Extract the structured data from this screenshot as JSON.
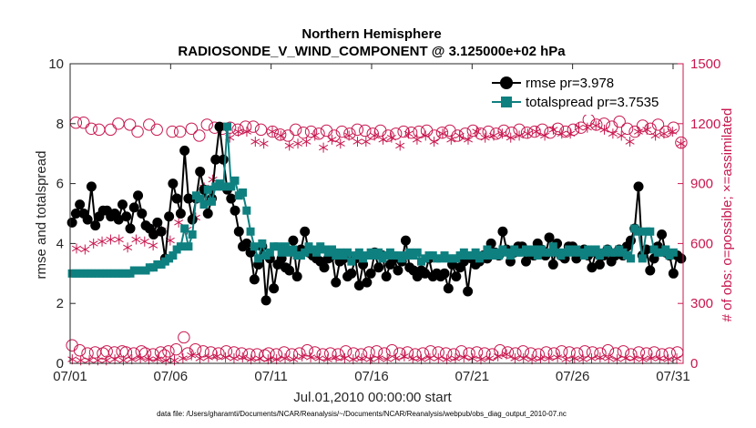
{
  "chart_data": {
    "type": "line",
    "title_line1": "Northern Hemisphere",
    "title_line2": "RADIOSONDE_V_WIND_COMPONENT @ 3.125000e+02 hPa",
    "xlabel": "Jul.01,2010 00:00:00 start",
    "ylabel_left": "rmse and totalspread",
    "ylabel_right": "# of obs: o=possible; ×=assimilated",
    "footer": "data file: /Users/gharamti/Documents/NCAR/Reanalysis/~/Documents/NCAR/Reanalysis/webpub/obs_diag_output_2010-07.nc",
    "xlim": [
      0,
      30.5
    ],
    "ylim_left": [
      0,
      10
    ],
    "ylim_right": [
      0,
      1500
    ],
    "x_tick_values": [
      0,
      5,
      10,
      15,
      20,
      25,
      30
    ],
    "x_tick_labels": [
      "07/01",
      "07/06",
      "07/11",
      "07/16",
      "07/21",
      "07/26",
      "07/31"
    ],
    "y_left_ticks": [
      "0",
      "2",
      "4",
      "6",
      "8",
      "10"
    ],
    "y_right_ticks": [
      "0",
      "300",
      "600",
      "900",
      "1200",
      "1500"
    ],
    "colors": {
      "rmse": "#000000",
      "totalspread": "#0f8080",
      "obs": "#c8174f",
      "axis": "#262626"
    },
    "series": [
      {
        "name": "rmse pr=3.978",
        "axis": "left",
        "marker": "circle",
        "values": [
          4.7,
          5.0,
          5.3,
          5.0,
          4.8,
          5.9,
          4.6,
          4.9,
          5.1,
          5.1,
          4.9,
          5.0,
          4.8,
          5.3,
          4.9,
          4.5,
          5.2,
          5.6,
          5.0,
          4.6,
          4.5,
          4.3,
          4.7,
          4.4,
          3.5,
          4.9,
          6.0,
          5.5,
          5.0,
          7.1,
          5.5,
          4.8,
          5.5,
          6.4,
          5.8,
          5.0,
          5.5,
          6.8,
          7.9,
          6.8,
          5.8,
          5.5,
          5.1,
          4.4,
          3.9,
          4.0,
          3.7,
          2.8,
          3.3,
          3.9,
          2.1,
          3.5,
          2.5,
          3.3,
          3.5,
          3.2,
          3.1,
          4.1,
          2.9,
          3.8,
          4.4,
          3.7,
          3.6,
          3.5,
          3.4,
          3.2,
          3.5,
          3.6,
          2.7,
          3.4,
          3.5,
          2.9,
          3.0,
          3.5,
          2.6,
          3.3,
          2.7,
          3.0,
          3.7,
          3.2,
          3.6,
          2.9,
          3.3,
          3.5,
          3.1,
          3.4,
          4.1,
          3.2,
          3.1,
          2.9,
          3.1,
          3.0,
          3.5,
          2.9,
          3.0,
          2.9,
          3.0,
          2.5,
          3.3,
          2.9,
          3.2,
          3.4,
          2.4,
          3.5,
          3.3,
          3.4,
          3.6,
          3.5,
          4.0,
          3.7,
          3.6,
          4.4,
          3.8,
          3.4,
          3.7,
          3.9,
          3.9,
          3.4,
          3.7,
          3.6,
          4.0,
          3.8,
          3.6,
          4.2,
          3.3,
          4.0,
          3.6,
          3.5,
          3.9,
          3.9,
          3.5,
          3.7,
          3.8,
          3.6,
          3.2,
          3.7,
          3.3,
          3.6,
          3.8,
          3.4,
          3.6,
          3.8,
          3.6,
          3.9,
          4.1,
          4.5,
          5.9,
          3.6,
          3.8,
          3.1,
          3.5,
          3.9,
          4.3,
          3.7,
          3.6,
          3.0,
          3.6,
          3.5
        ]
      },
      {
        "name": "totalspread pr=3.7535",
        "axis": "left",
        "marker": "square",
        "values": [
          3.0,
          3.0,
          3.0,
          3.0,
          3.0,
          3.0,
          3.0,
          3.0,
          3.0,
          3.0,
          3.0,
          3.0,
          3.0,
          3.0,
          3.0,
          3.0,
          3.1,
          3.1,
          3.1,
          3.1,
          3.2,
          3.2,
          3.3,
          3.3,
          3.4,
          3.5,
          3.6,
          3.8,
          3.9,
          4.5,
          3.9,
          4.3,
          5.6,
          5.5,
          5.3,
          5.8,
          5.4,
          5.9,
          6.0,
          5.9,
          7.9,
          5.9,
          6.1,
          5.6,
          5.7,
          5.1,
          4.4,
          3.9,
          3.5,
          4.0,
          3.6,
          3.7,
          3.9,
          3.9,
          3.7,
          3.9,
          3.7,
          3.8,
          3.6,
          3.6,
          3.7,
          3.9,
          3.8,
          3.7,
          3.9,
          3.8,
          3.7,
          3.8,
          3.6,
          3.7,
          3.6,
          3.7,
          3.4,
          3.6,
          3.7,
          3.5,
          3.6,
          3.7,
          3.6,
          3.7,
          3.5,
          3.6,
          3.7,
          3.6,
          3.6,
          3.5,
          3.6,
          3.7,
          3.6,
          3.7,
          3.4,
          3.5,
          3.6,
          3.6,
          3.5,
          3.5,
          3.6,
          3.5,
          3.5,
          3.5,
          3.6,
          3.7,
          3.6,
          3.6,
          3.7,
          3.5,
          3.6,
          3.8,
          3.6,
          3.7,
          3.6,
          3.8,
          3.7,
          3.6,
          3.8,
          3.7,
          3.7,
          3.8,
          3.7,
          3.8,
          3.6,
          3.8,
          3.7,
          3.7,
          3.9,
          3.7,
          3.6,
          3.7,
          3.8,
          3.7,
          3.8,
          3.7,
          3.6,
          3.8,
          3.7,
          3.8,
          3.6,
          3.7,
          3.8,
          3.7,
          3.7,
          3.8,
          3.7,
          3.6,
          3.5,
          4.5,
          4.4,
          3.5,
          4.4,
          4.4,
          3.8,
          3.7,
          3.7,
          3.8,
          3.6,
          3.7
        ]
      },
      {
        "name": "possible",
        "axis": "right",
        "marker": "open-circle",
        "values": [
          90,
          1205,
          65,
          1205,
          50,
          1175,
          55,
          1170,
          50,
          60,
          1170,
          55,
          1200,
          60,
          55,
          1195,
          50,
          1160,
          60,
          50,
          1195,
          45,
          1170,
          55,
          40,
          60,
          1160,
          70,
          1160,
          130,
          50,
          1175,
          70,
          1140,
          60,
          1195,
          55,
          1180,
          50,
          1175,
          60,
          1180,
          55,
          1170,
          50,
          1185,
          45,
          1185,
          45,
          1170,
          40,
          50,
          1160,
          45,
          1145,
          55,
          1140,
          45,
          1170,
          50,
          1155,
          65,
          1160,
          55,
          1150,
          45,
          1165,
          50,
          1140,
          45,
          1160,
          60,
          1150,
          50,
          1170,
          45,
          1165,
          55,
          1150,
          60,
          1165,
          50,
          1140,
          65,
          1150,
          50,
          1160,
          55,
          1155,
          45,
          1160,
          50,
          1165,
          60,
          1140,
          55,
          1155,
          50,
          1165,
          45,
          1140,
          60,
          1150,
          50,
          1165,
          55,
          1150,
          50,
          1160,
          45,
          1150,
          65,
          1165,
          55,
          1155,
          50,
          1170,
          60,
          1155,
          50,
          1160,
          45,
          1170,
          55,
          1155,
          50,
          1175,
          60,
          1160,
          55,
          1170,
          50,
          1180,
          60,
          1220,
          55,
          1195,
          50,
          1200,
          65,
          1185,
          50,
          1210,
          60,
          1175,
          45,
          1160,
          55,
          1190,
          50,
          1175,
          55,
          1195,
          45,
          1160,
          50,
          1180,
          55,
          1105
        ]
      },
      {
        "name": "assimilated",
        "axis": "right",
        "marker": "asterisk",
        "values": [
          20,
          575,
          15,
          570,
          15,
          600,
          15,
          610,
          15,
          620,
          20,
          620,
          15,
          580,
          20,
          620,
          25,
          610,
          20,
          590,
          20,
          665,
          15,
          615,
          15,
          705,
          25,
          670,
          40,
          730,
          25,
          880,
          30,
          920,
          35,
          1180,
          30,
          1130,
          25,
          1160,
          30,
          1160,
          20,
          1110,
          25,
          1100,
          20,
          1160,
          20,
          1140,
          25,
          1090,
          20,
          1100,
          35,
          1110,
          30,
          1140,
          25,
          1080,
          20,
          1120,
          30,
          1100,
          25,
          1140,
          20,
          1110,
          25,
          1110,
          20,
          1140,
          25,
          1120,
          20,
          1130,
          25,
          1090,
          35,
          1150,
          25,
          1120,
          20,
          1140,
          25,
          1110,
          25,
          1150,
          20,
          1120,
          25,
          1140,
          30,
          1120,
          25,
          1160,
          20,
          1130,
          25,
          1140,
          35,
          1150,
          45,
          1130,
          25,
          1140,
          25,
          1150,
          20,
          1160,
          25,
          1140,
          25,
          1170,
          30,
          1150,
          20,
          1150,
          25,
          1180,
          20,
          1180,
          25,
          1190,
          30,
          1170,
          25,
          1150,
          20,
          1140,
          25,
          1110,
          25,
          1160,
          20,
          1170,
          25,
          1140,
          25,
          1150,
          20,
          1160,
          25,
          1100
        ]
      }
    ]
  }
}
